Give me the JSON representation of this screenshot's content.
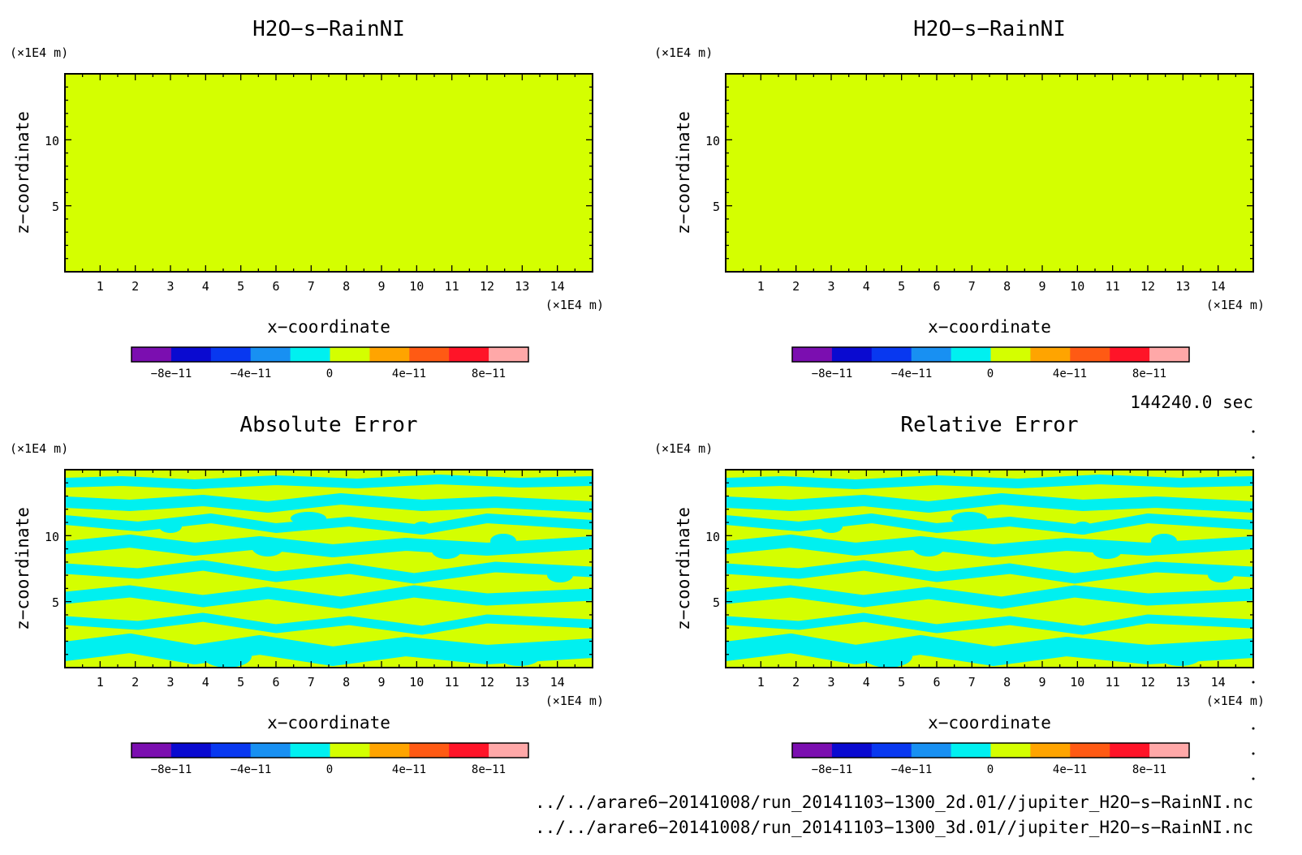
{
  "chart_data": [
    {
      "type": "heatmap",
      "title": "H2O−s−RainNI",
      "xlabel": "x−coordinate",
      "ylabel": "z−coordinate",
      "x_unit": "(×1E4 m)",
      "y_unit": "(×1E4 m)",
      "xlim": [
        0,
        15
      ],
      "ylim": [
        0,
        15
      ],
      "x_ticks": [
        "1",
        "2",
        "3",
        "4",
        "5",
        "6",
        "7",
        "8",
        "9",
        "10",
        "11",
        "12",
        "13",
        "14"
      ],
      "y_ticks": [
        "5",
        "10"
      ],
      "field": "uniform",
      "value": 0
    },
    {
      "type": "heatmap",
      "title": "H2O−s−RainNI",
      "xlabel": "x−coordinate",
      "ylabel": "z−coordinate",
      "x_unit": "(×1E4 m)",
      "y_unit": "(×1E4 m)",
      "xlim": [
        0,
        15
      ],
      "ylim": [
        0,
        15
      ],
      "x_ticks": [
        "1",
        "2",
        "3",
        "4",
        "5",
        "6",
        "7",
        "8",
        "9",
        "10",
        "11",
        "12",
        "13",
        "14"
      ],
      "y_ticks": [
        "5",
        "10"
      ],
      "field": "uniform",
      "value": 0
    },
    {
      "type": "heatmap",
      "title": "Absolute Error",
      "xlabel": "x−coordinate",
      "ylabel": "z−coordinate",
      "x_unit": "(×1E4 m)",
      "y_unit": "(×1E4 m)",
      "xlim": [
        0,
        15
      ],
      "ylim": [
        0,
        15
      ],
      "x_ticks": [
        "1",
        "2",
        "3",
        "4",
        "5",
        "6",
        "7",
        "8",
        "9",
        "10",
        "11",
        "12",
        "13",
        "14"
      ],
      "y_ticks": [
        "5",
        "10"
      ],
      "field": "mixed",
      "levels_present": [
        0,
        1e-11
      ],
      "pattern_top_z": 12
    },
    {
      "type": "heatmap",
      "title": "Relative Error",
      "xlabel": "x−coordinate",
      "ylabel": "z−coordinate",
      "x_unit": "(×1E4 m)",
      "y_unit": "(×1E4 m)",
      "xlim": [
        0,
        15
      ],
      "ylim": [
        0,
        15
      ],
      "x_ticks": [
        "1",
        "2",
        "3",
        "4",
        "5",
        "6",
        "7",
        "8",
        "9",
        "10",
        "11",
        "12",
        "13",
        "14"
      ],
      "y_ticks": [
        "5",
        "10"
      ],
      "field": "mixed",
      "levels_present": [
        0,
        1e-11
      ],
      "pattern_top_z": 12
    }
  ],
  "colorbar": {
    "colors": [
      "#7b0eb0",
      "#0a0ad0",
      "#0838f0",
      "#1890f2",
      "#00f0f0",
      "#d4ff00",
      "#ffa400",
      "#ff5a14",
      "#ff1428",
      "#ffa8a8"
    ],
    "tick_labels": [
      "−8e−11",
      "−4e−11",
      "0",
      "4e−11",
      "8e−11"
    ],
    "range": [
      -1e-10,
      1e-10
    ]
  },
  "time_label": "144240.0 sec",
  "files": [
    "../../arare6−20141008/run_20141103−1300_2d.01//jupiter_H2O−s−RainNI.nc",
    "../../arare6−20141008/run_20141103−1300_3d.01//jupiter_H2O−s−RainNI.nc"
  ],
  "colors": {
    "background": "#ffffff",
    "field_zero": "#d4ff00",
    "field_positive": "#00f0f0"
  }
}
